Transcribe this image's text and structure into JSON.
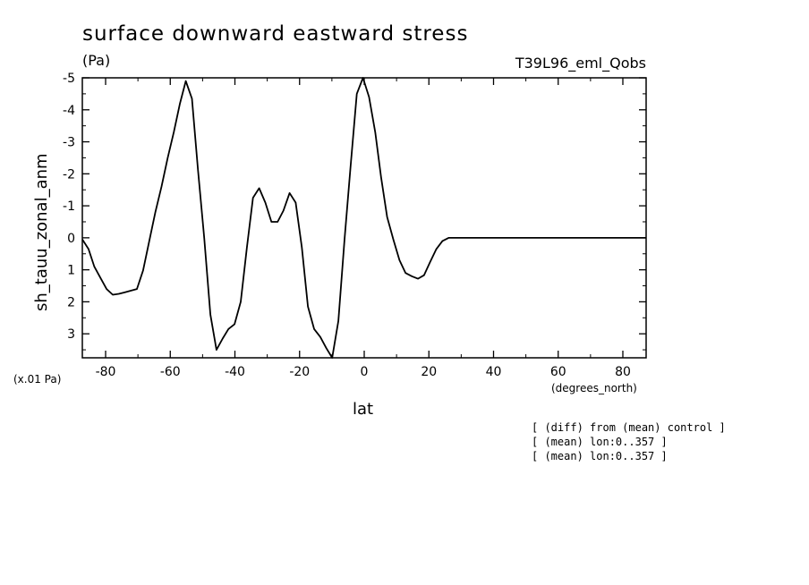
{
  "chart_data": {
    "type": "line",
    "title": "surface downward eastward stress",
    "units": "(Pa)",
    "run_label": "T39L96_eml_Qobs",
    "ylabel": "sh_tauu_zonal_anm",
    "yscale_note": "(x.01 Pa)",
    "xlabel": "lat",
    "xunits": "(degrees_north)",
    "notes": [
      "[ (diff) from (mean) control ]",
      "[ (mean) lon:0..357 ]",
      "[ (mean) lon:0..357 ]"
    ],
    "xlim": [
      -87.2,
      87.2
    ],
    "ylim": [
      3.75,
      -5
    ],
    "y_inverted": true,
    "x_ticks": [
      -80,
      -60,
      -40,
      -20,
      0,
      20,
      40,
      60,
      80
    ],
    "x_tick_labels": [
      "-80",
      "-60",
      "-40",
      "-20",
      "0",
      "20",
      "40",
      "60",
      "80"
    ],
    "y_ticks": [
      -5,
      -4,
      -3,
      -2,
      -1,
      0,
      1,
      2,
      3
    ],
    "y_tick_labels": [
      "-5",
      "-4",
      "-3",
      "-2",
      "-1",
      "0",
      "1",
      "2",
      "3"
    ],
    "grid": false,
    "series": [
      {
        "x": [
          -87.2,
          -85.3,
          -83.5,
          -81.6,
          -79.7,
          -77.8,
          -75.9,
          -74.0,
          -72.1,
          -70.3,
          -68.4,
          -66.5,
          -64.6,
          -62.7,
          -60.8,
          -58.9,
          -57.0,
          -55.2,
          -53.3,
          -51.4,
          -49.5,
          -47.6,
          -45.7,
          -43.8,
          -42.0,
          -40.1,
          -38.2,
          -36.3,
          -34.4,
          -32.5,
          -30.6,
          -28.7,
          -26.8,
          -25.0,
          -23.1,
          -21.2,
          -19.3,
          -17.4,
          -15.5,
          -13.6,
          -11.7,
          -9.9,
          -8.0,
          -6.1,
          -4.2,
          -2.3,
          -0.4,
          1.5,
          3.4,
          5.2,
          7.1,
          9.0,
          10.9,
          12.8,
          14.7,
          16.6,
          18.5,
          20.4,
          22.3,
          24.2,
          26.1,
          28.0,
          29.8,
          31.7,
          33.6,
          35.5,
          37.4,
          39.3,
          41.2,
          43.1,
          45.0,
          46.8,
          48.7,
          50.6,
          52.5,
          54.4,
          56.3,
          58.2,
          60.1,
          62.0,
          63.9,
          65.8,
          67.7,
          69.6,
          71.5,
          73.4,
          75.3,
          77.2,
          79.1,
          81.0,
          82.8,
          84.7,
          86.6,
          87.2
        ],
        "y": [
          0.05,
          0.35,
          0.9,
          1.25,
          1.6,
          1.78,
          1.75,
          1.7,
          1.65,
          1.6,
          1.02,
          0.1,
          -0.8,
          -1.6,
          -2.5,
          -3.3,
          -4.2,
          -4.9,
          -4.35,
          -2.1,
          0.0,
          2.4,
          3.5,
          3.15,
          2.85,
          2.7,
          2.0,
          0.3,
          -1.25,
          -1.55,
          -1.1,
          -0.5,
          -0.5,
          -0.85,
          -1.4,
          -1.1,
          0.3,
          2.15,
          2.85,
          3.1,
          3.45,
          3.75,
          2.6,
          0.05,
          -2.25,
          -4.5,
          -5.0,
          -4.4,
          -3.3,
          -1.9,
          -0.65,
          0.05,
          0.7,
          1.1,
          1.2,
          1.28,
          1.17,
          0.75,
          0.35,
          0.1,
          0.0,
          0.0,
          0.0,
          0.0,
          0.0,
          0.0,
          0.0,
          0.0,
          0.0,
          0.0,
          0.0,
          0.0,
          0.0,
          0.0,
          0.0,
          0.0,
          0.0,
          0.0,
          0.0,
          0.0,
          0.0,
          0.0,
          0.0,
          0.0,
          0.0,
          0.0,
          0.0,
          0.0,
          0.0,
          0.0,
          0.0,
          0.0,
          0.0,
          0.0
        ]
      }
    ]
  }
}
